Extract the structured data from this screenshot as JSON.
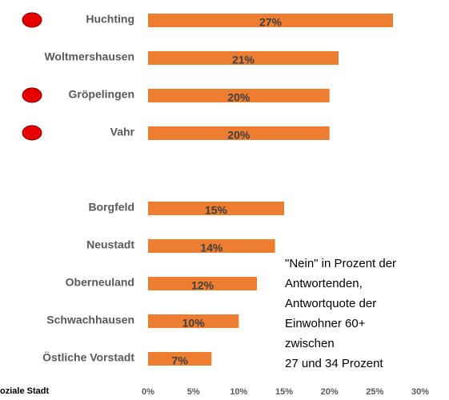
{
  "chart_data": {
    "type": "bar",
    "orientation": "horizontal",
    "categories": [
      "Huchting",
      "Woltmershausen",
      "Gröpelingen",
      "Vahr",
      null,
      "Borgfeld",
      "Neustadt",
      "Oberneuland",
      "Schwachhausen",
      "Östliche Vorstadt"
    ],
    "values": [
      27,
      21,
      20,
      20,
      null,
      15,
      14,
      12,
      10,
      7
    ],
    "value_labels": [
      "27%",
      "21%",
      "20%",
      "20%",
      null,
      "15%",
      "14%",
      "12%",
      "10%",
      "7%"
    ],
    "highlighted": [
      true,
      false,
      true,
      true,
      false,
      false,
      false,
      false,
      false,
      false
    ],
    "highlight_color": "#e60000",
    "highlight_legend": "oziale Stadt",
    "color": "#ed7d31",
    "xlim": [
      0,
      30
    ],
    "xticks": [
      {
        "value": 0,
        "label": "0%"
      },
      {
        "value": 5,
        "label": "5%"
      },
      {
        "value": 10,
        "label": "10%"
      },
      {
        "value": 15,
        "label": "15%"
      },
      {
        "value": 20,
        "label": "20%"
      },
      {
        "value": 25,
        "label": "25%"
      },
      {
        "value": 30,
        "label": "30%"
      }
    ],
    "annotation": [
      "\"Nein\" in Prozent der",
      "Antwortenden,",
      "Antwortquote der",
      "Einwohner 60+",
      "zwischen",
      " 27 und 34 Prozent"
    ]
  }
}
